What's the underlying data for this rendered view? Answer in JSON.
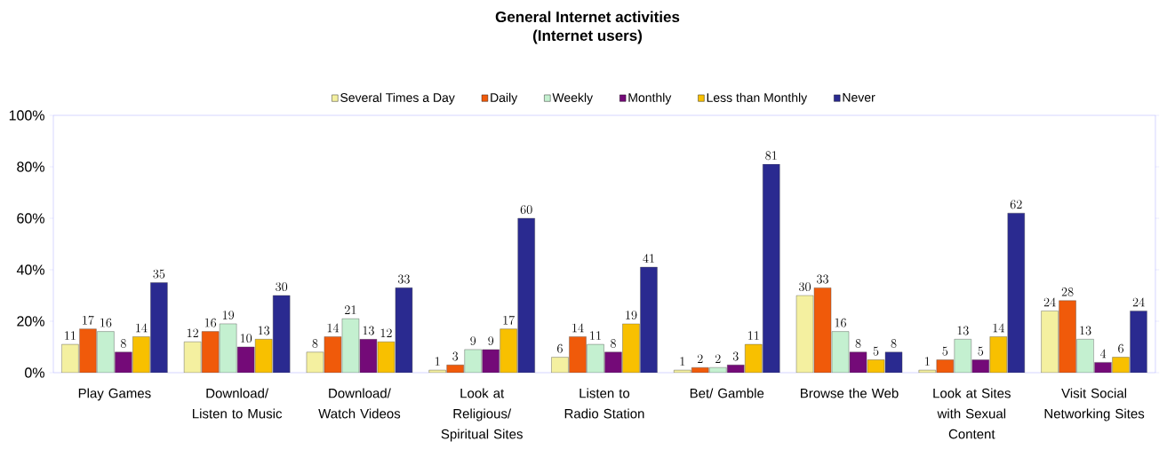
{
  "chart_data": {
    "type": "bar",
    "title": "General Internet activities",
    "subtitle": "(Internet users)",
    "categories": [
      "Play Games",
      "Download/ Listen to Music",
      "Download/ Watch Videos",
      "Look at Religious/ Spiritual Sites",
      "Listen to Radio Station",
      "Bet/ Gamble",
      "Browse the Web",
      "Look at Sites with Sexual Content",
      "Visit Social Networking Sites"
    ],
    "series": [
      {
        "name": "Several Times a Day",
        "color": "#f4f0a0",
        "values": [
          11,
          12,
          8,
          1,
          6,
          1,
          30,
          1,
          24
        ]
      },
      {
        "name": "Daily",
        "color": "#f05a0a",
        "values": [
          17,
          16,
          14,
          3,
          14,
          2,
          33,
          5,
          28
        ]
      },
      {
        "name": "Weekly",
        "color": "#c4f0d0",
        "values": [
          16,
          19,
          21,
          9,
          11,
          2,
          16,
          13,
          13
        ]
      },
      {
        "name": "Monthly",
        "color": "#740a78",
        "values": [
          8,
          10,
          13,
          9,
          8,
          3,
          8,
          5,
          4
        ]
      },
      {
        "name": "Less than Monthly",
        "color": "#f8c000",
        "values": [
          14,
          13,
          12,
          17,
          19,
          11,
          5,
          14,
          6
        ]
      },
      {
        "name": "Never",
        "color": "#2a2a90",
        "values": [
          35,
          30,
          33,
          60,
          41,
          81,
          8,
          62,
          24
        ]
      }
    ],
    "ylim": [
      0,
      100
    ],
    "yticks": [
      {
        "value": 0,
        "label": "0%"
      },
      {
        "value": 20,
        "label": "20%"
      },
      {
        "value": 40,
        "label": "40%"
      },
      {
        "value": 60,
        "label": "60%"
      },
      {
        "value": 80,
        "label": "80%"
      },
      {
        "value": 100,
        "label": "100%"
      }
    ],
    "data_labels": true,
    "legend": "top"
  }
}
